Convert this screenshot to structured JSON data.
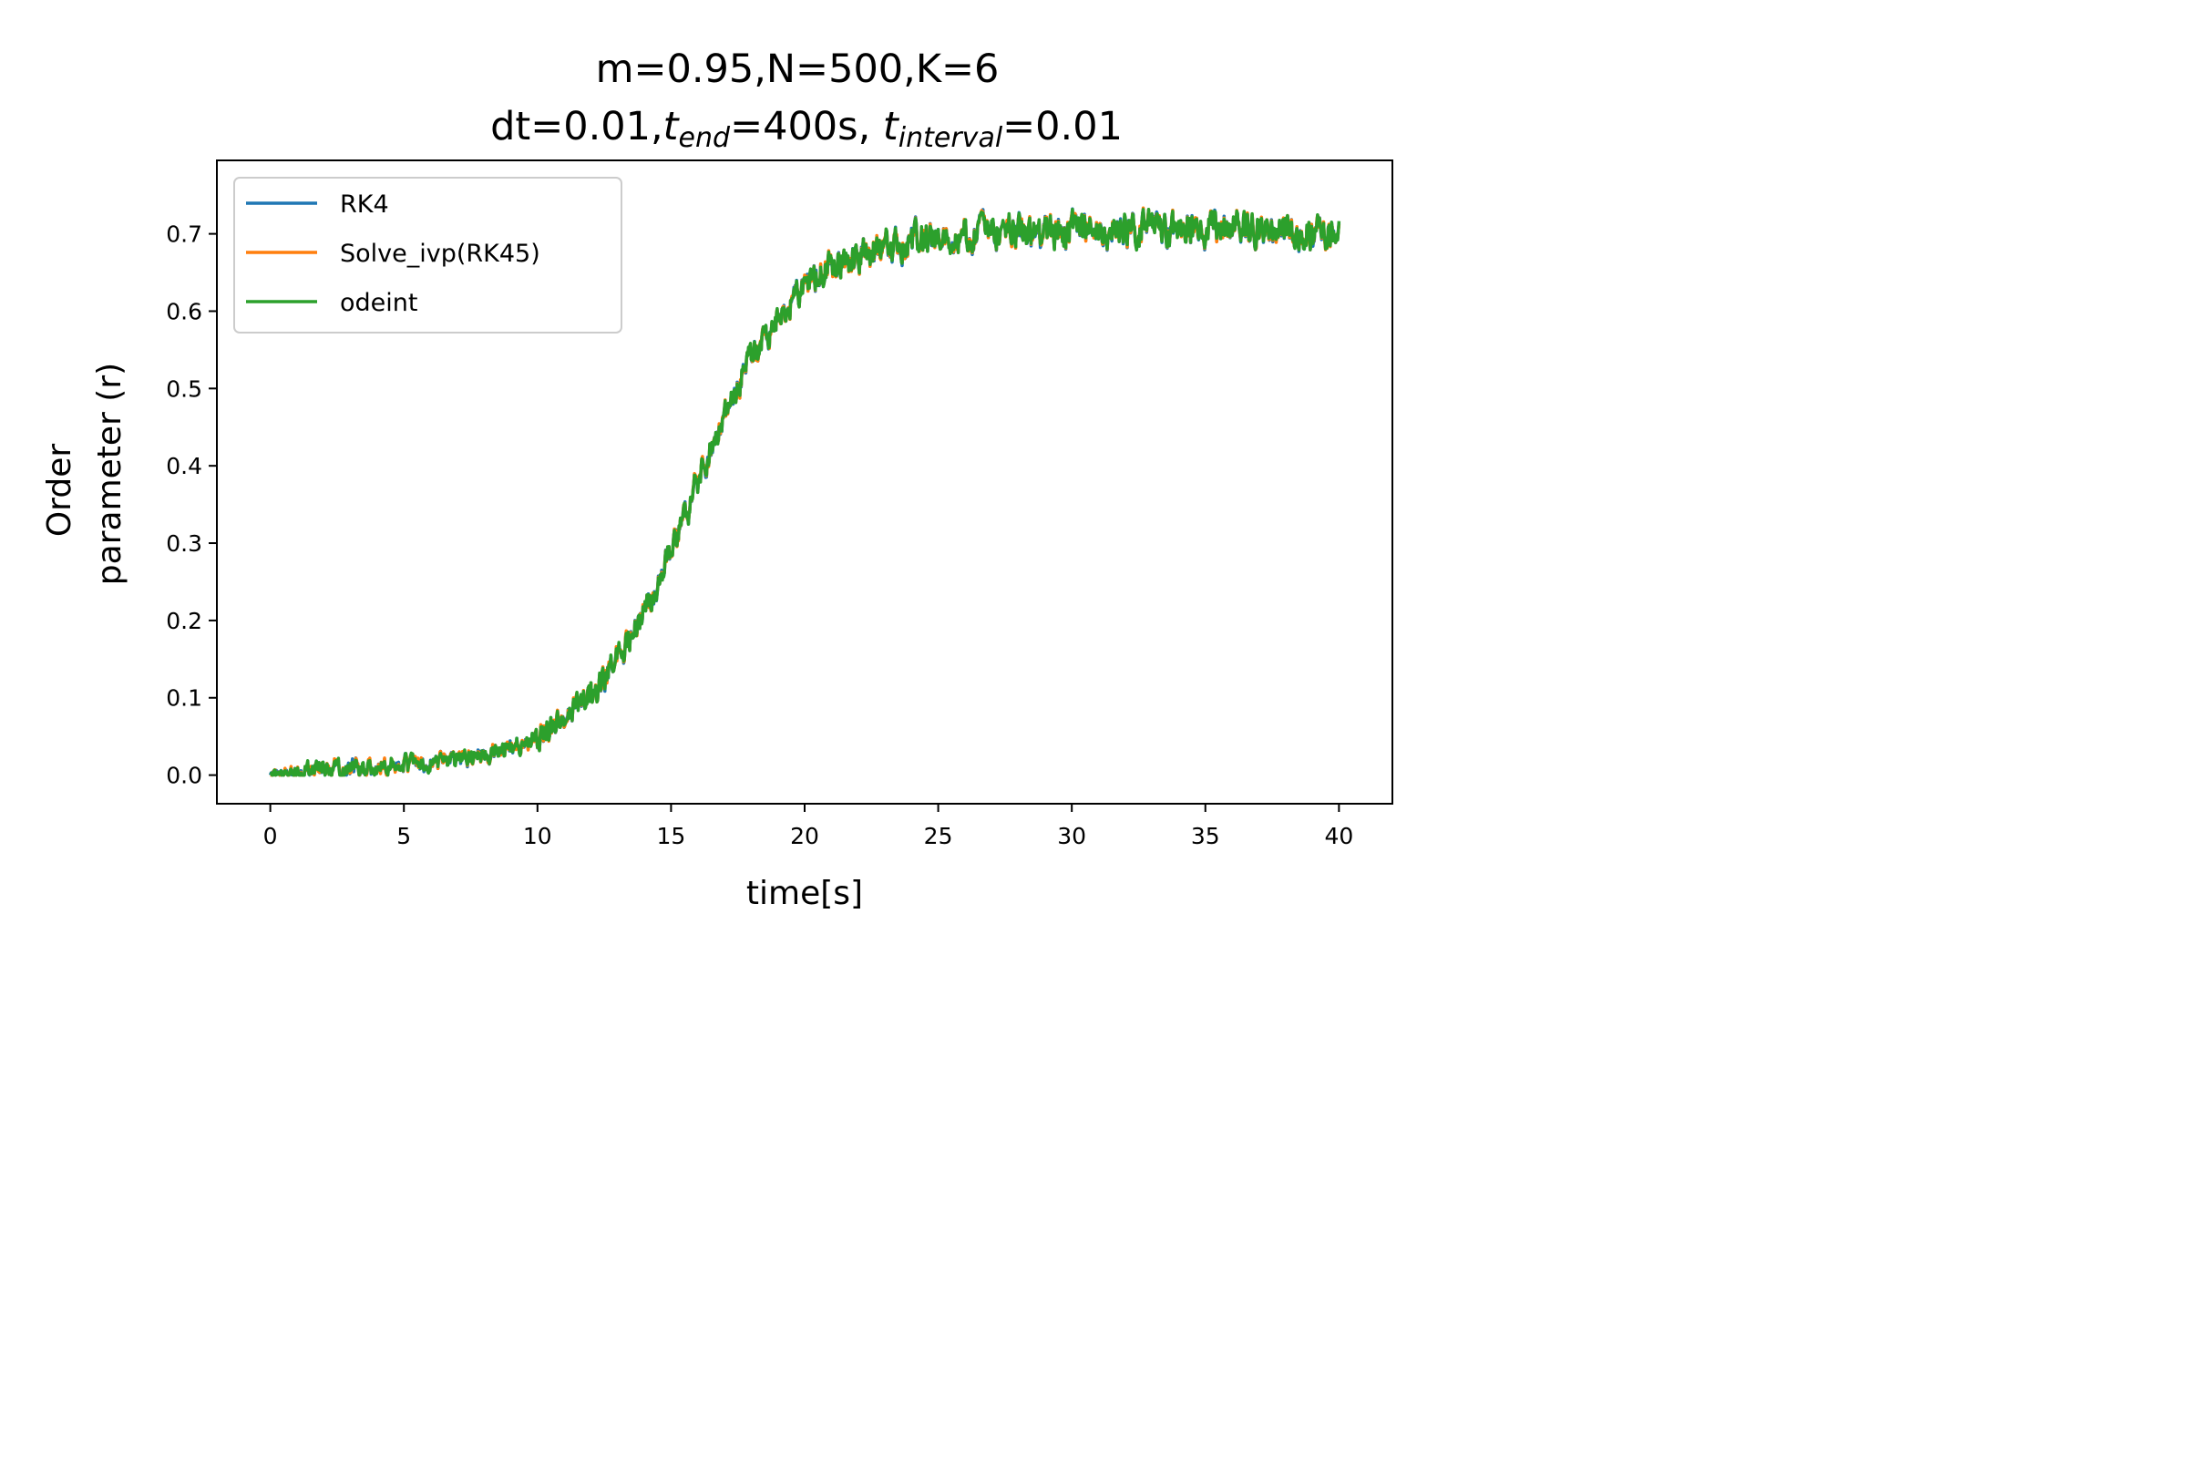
{
  "chart_data": {
    "type": "line",
    "title": {
      "line1": "m=0.95,N=500,K=6",
      "line2_prefix": "dt=0.01,",
      "t_symbol": "t",
      "end_sub": "end",
      "mid": "=400s, ",
      "interval_sub": "interval",
      "suffix": "=0.01"
    },
    "xlabel": "time[s]",
    "ylabel_line1": "Order",
    "ylabel_line2": "parameter (r)",
    "xlim": [
      -2,
      42
    ],
    "ylim": [
      -0.037,
      0.795
    ],
    "xticks": [
      0,
      5,
      10,
      15,
      20,
      25,
      30,
      35,
      40
    ],
    "yticks": [
      0.0,
      0.1,
      0.2,
      0.3,
      0.4,
      0.5,
      0.6,
      0.7
    ],
    "legend_position": "upper-left",
    "colors": {
      "RK4": "#1f77b4",
      "Solve_ivp(RK45)": "#ff7f0e",
      "odeint": "#2ca02c"
    },
    "trend": {
      "x": [
        0,
        2,
        4,
        6,
        8,
        10,
        11,
        12,
        13,
        14,
        15,
        16,
        17,
        18,
        19,
        20,
        21,
        22,
        23,
        24,
        25,
        26,
        28,
        30,
        32,
        34,
        36,
        38,
        40
      ],
      "y": [
        0.0,
        0.008,
        0.01,
        0.015,
        0.025,
        0.05,
        0.075,
        0.1,
        0.15,
        0.21,
        0.29,
        0.38,
        0.46,
        0.54,
        0.59,
        0.635,
        0.655,
        0.67,
        0.68,
        0.69,
        0.698,
        0.7,
        0.705,
        0.705,
        0.705,
        0.705,
        0.71,
        0.705,
        0.7
      ]
    },
    "series": [
      {
        "name": "RK4",
        "seed": 7
      },
      {
        "name": "Solve_ivp(RK45)",
        "seed": 11
      },
      {
        "name": "odeint",
        "seed": 13
      }
    ]
  }
}
